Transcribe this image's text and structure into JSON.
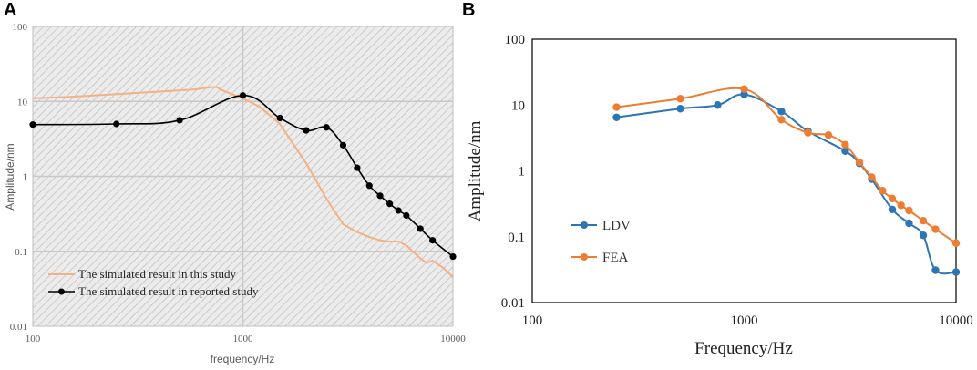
{
  "panels": {
    "a": "A",
    "b": "B"
  },
  "chart_data": [
    {
      "type": "line",
      "panel": "A",
      "xscale": "log",
      "yscale": "log",
      "xlim": [
        100,
        10000
      ],
      "ylim": [
        0.01,
        100
      ],
      "xlabel": "frequency/Hz",
      "ylabel": "Amplitude/nm",
      "xticks": [
        100,
        1000,
        10000
      ],
      "xtick_labels": [
        "100",
        "1000",
        "10000"
      ],
      "yticks": [
        0.01,
        0.1,
        1,
        10,
        100
      ],
      "ytick_labels": [
        "0.01",
        "0.1",
        "1",
        "10",
        "100"
      ],
      "background": "hatched-grey",
      "legend_position": "bottom-left",
      "series": [
        {
          "name": "The simulated result in this study",
          "color": "#f4b183",
          "markers": false,
          "x": [
            100,
            150,
            250,
            400,
            600,
            700,
            750,
            800,
            1000,
            1200,
            1500,
            2000,
            2500,
            3000,
            3500,
            4000,
            4500,
            5000,
            5500,
            6000,
            7000,
            7500,
            8000,
            9000,
            10000
          ],
          "y": [
            11,
            11.5,
            12.5,
            13.5,
            14.5,
            15.5,
            15.5,
            14,
            11,
            8.5,
            5,
            1.5,
            0.5,
            0.23,
            0.18,
            0.155,
            0.14,
            0.135,
            0.135,
            0.12,
            0.08,
            0.07,
            0.075,
            0.06,
            0.045
          ]
        },
        {
          "name": "The simulated result in reported study",
          "color": "#000000",
          "markers": true,
          "x": [
            100,
            250,
            500,
            1000,
            1500,
            2000,
            2500,
            3000,
            3500,
            4000,
            4500,
            5000,
            5500,
            6000,
            7000,
            8000,
            10000
          ],
          "y": [
            4.9,
            5.0,
            5.6,
            12,
            6,
            4.1,
            4.5,
            2.6,
            1.3,
            0.75,
            0.55,
            0.43,
            0.35,
            0.3,
            0.2,
            0.14,
            0.085
          ]
        }
      ]
    },
    {
      "type": "line",
      "panel": "B",
      "xscale": "log",
      "yscale": "log",
      "xlim": [
        100,
        10000
      ],
      "ylim": [
        0.01,
        100
      ],
      "xlabel": "Frequency/Hz",
      "ylabel": "Amplitude/nm",
      "xticks": [
        100,
        1000,
        10000
      ],
      "xtick_labels": [
        "100",
        "1000",
        "10000"
      ],
      "yticks": [
        0.01,
        0.1,
        1,
        10,
        100
      ],
      "ytick_labels": [
        "0.01",
        "0.1",
        "1",
        "10",
        "100"
      ],
      "legend_position": "bottom-left",
      "series": [
        {
          "name": "LDV",
          "color": "#2e75b6",
          "markers": true,
          "x": [
            250,
            500,
            750,
            1000,
            1500,
            2000,
            3000,
            3500,
            4000,
            5000,
            6000,
            7000,
            8000,
            10000
          ],
          "y": [
            6.5,
            8.8,
            10,
            14.5,
            8,
            4,
            2,
            1.3,
            0.75,
            0.26,
            0.16,
            0.105,
            0.031,
            0.029
          ]
        },
        {
          "name": "FEA",
          "color": "#ed7d31",
          "markers": true,
          "x": [
            250,
            500,
            1000,
            1500,
            2000,
            2500,
            3000,
            3500,
            4000,
            4500,
            5000,
            5500,
            6000,
            7000,
            8000,
            10000
          ],
          "y": [
            9.3,
            12.5,
            17.5,
            6,
            3.8,
            3.5,
            2.5,
            1.35,
            0.8,
            0.5,
            0.38,
            0.3,
            0.25,
            0.175,
            0.13,
            0.08
          ]
        }
      ]
    }
  ]
}
